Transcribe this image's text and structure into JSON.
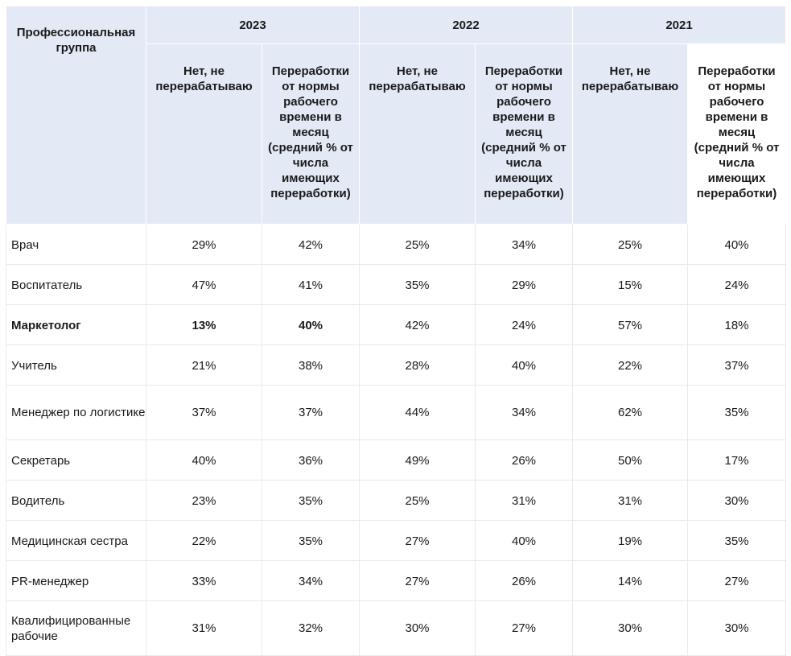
{
  "table": {
    "group_header": "Профессиональная группа",
    "years": [
      "2023",
      "2022",
      "2021"
    ],
    "sub_headers": {
      "no_overtime": "Нет, не перерабатываю",
      "overtime_avg": "Переработки от нормы рабочего времени в месяц (средний % от числа имеющих переработки)"
    },
    "rows": [
      {
        "name": "Врач",
        "y2023_no": "29%",
        "y2023_ot": "42%",
        "y2022_no": "25%",
        "y2022_ot": "34%",
        "y2021_no": "25%",
        "y2021_ot": "40%"
      },
      {
        "name": "Воспитатель",
        "y2023_no": "47%",
        "y2023_ot": "41%",
        "y2022_no": "35%",
        "y2022_ot": "29%",
        "y2021_no": "15%",
        "y2021_ot": "24%"
      },
      {
        "name": "Маркетолог",
        "y2023_no": "13%",
        "y2023_ot": "40%",
        "y2022_no": "42%",
        "y2022_ot": "24%",
        "y2021_no": "57%",
        "y2021_ot": "18%"
      },
      {
        "name": "Учитель",
        "y2023_no": "21%",
        "y2023_ot": "38%",
        "y2022_no": "28%",
        "y2022_ot": "40%",
        "y2021_no": "22%",
        "y2021_ot": "37%"
      },
      {
        "name": "Менеджер по логистике",
        "y2023_no": "37%",
        "y2023_ot": "37%",
        "y2022_no": "44%",
        "y2022_ot": "34%",
        "y2021_no": "62%",
        "y2021_ot": "35%"
      },
      {
        "name": "Секретарь",
        "y2023_no": "40%",
        "y2023_ot": "36%",
        "y2022_no": "49%",
        "y2022_ot": "26%",
        "y2021_no": "50%",
        "y2021_ot": "17%"
      },
      {
        "name": "Водитель",
        "y2023_no": "23%",
        "y2023_ot": "35%",
        "y2022_no": "25%",
        "y2022_ot": "31%",
        "y2021_no": "31%",
        "y2021_ot": "30%"
      },
      {
        "name": "Медицинская сестра",
        "y2023_no": "22%",
        "y2023_ot": "35%",
        "y2022_no": "27%",
        "y2022_ot": "40%",
        "y2021_no": "19%",
        "y2021_ot": "35%"
      },
      {
        "name": "PR-менеджер",
        "y2023_no": "33%",
        "y2023_ot": "34%",
        "y2022_no": "27%",
        "y2022_ot": "26%",
        "y2021_no": "14%",
        "y2021_ot": "27%"
      },
      {
        "name": "Квалифицированные рабочие",
        "y2023_no": "31%",
        "y2023_ot": "32%",
        "y2022_no": "30%",
        "y2022_ot": "27%",
        "y2021_no": "30%",
        "y2021_ot": "30%"
      }
    ]
  }
}
